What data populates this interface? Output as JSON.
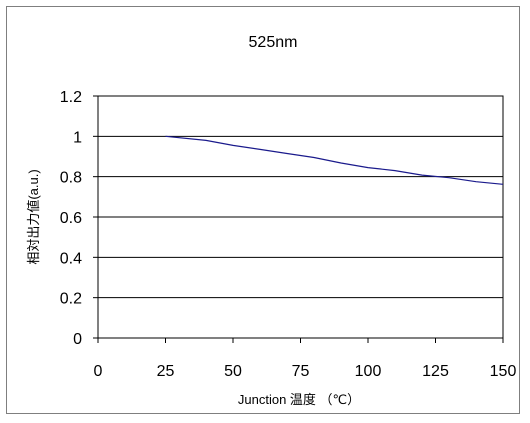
{
  "chart_data": {
    "type": "line",
    "title": "525nm",
    "xlabel": "Junction 温度 （℃）",
    "ylabel": "相対出力値(a.u.)",
    "xlim": [
      0,
      150
    ],
    "ylim": [
      0,
      1.2
    ],
    "xticks": [
      0,
      25,
      50,
      75,
      100,
      125,
      150
    ],
    "yticks": [
      0,
      0.2,
      0.4,
      0.6,
      0.8,
      1,
      1.2
    ],
    "xtick_labels": [
      "0",
      "25",
      "50",
      "75",
      "100",
      "125",
      "150"
    ],
    "ytick_labels": [
      "0",
      "0.2",
      "0.4",
      "0.6",
      "0.8",
      "1",
      "1.2"
    ],
    "grid": "horizontal",
    "legend": "none",
    "series": [
      {
        "color": "#1a1a8c",
        "x": [
          25,
          40,
          50,
          60,
          70,
          80,
          90,
          100,
          110,
          120,
          130,
          140,
          150
        ],
        "y": [
          1.0,
          0.98,
          0.955,
          0.935,
          0.915,
          0.895,
          0.868,
          0.845,
          0.83,
          0.808,
          0.795,
          0.775,
          0.762
        ]
      }
    ]
  }
}
